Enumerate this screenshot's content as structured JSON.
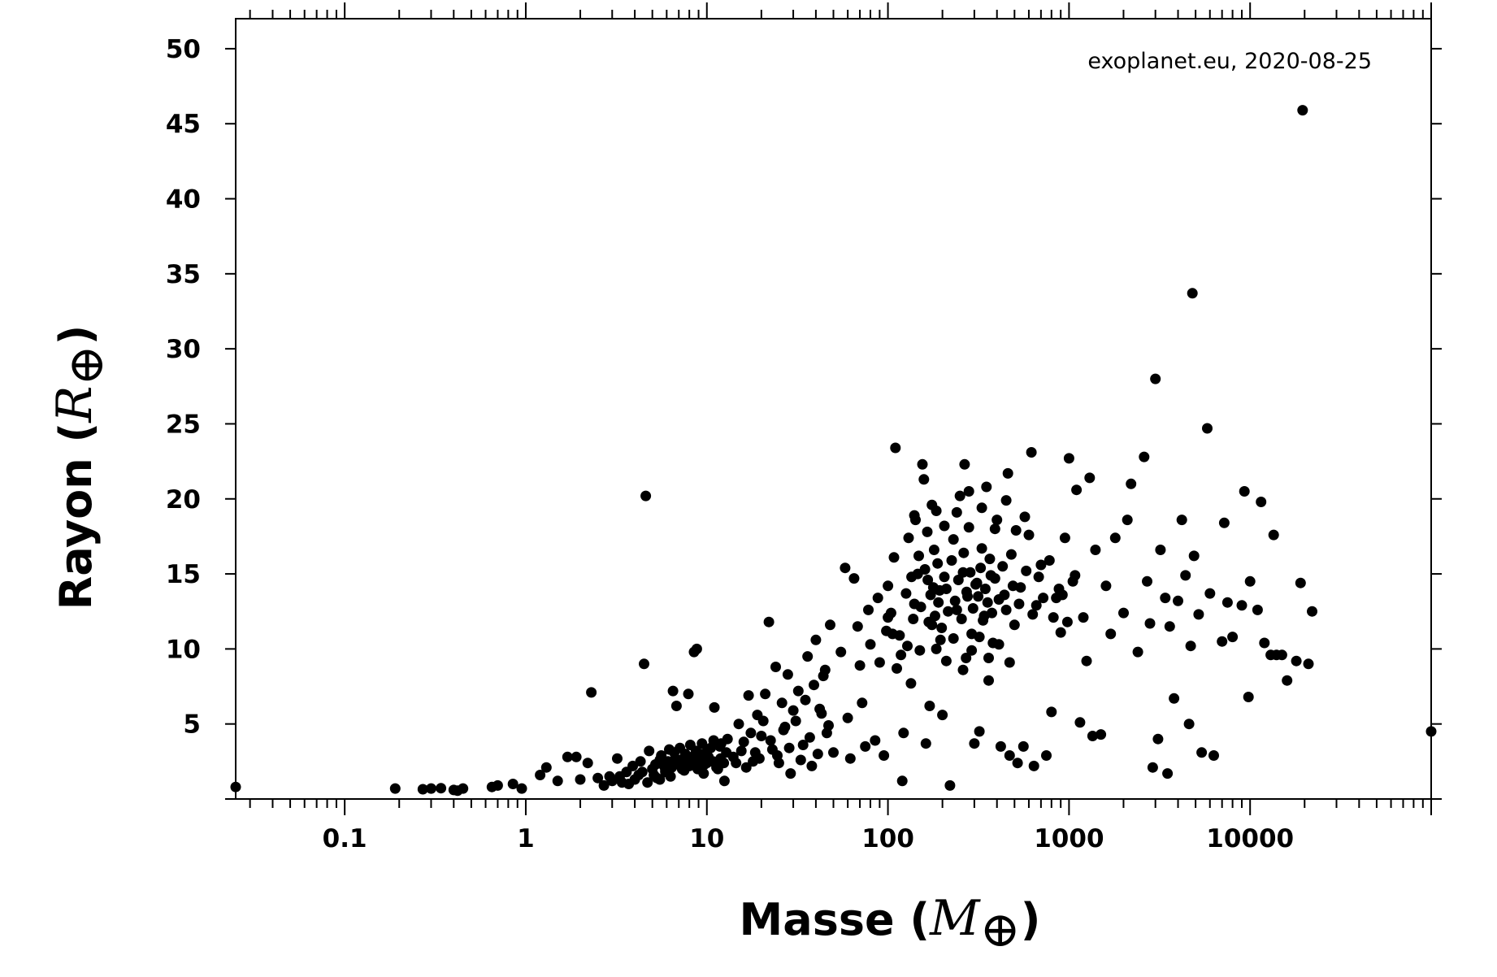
{
  "chart_data": {
    "type": "scatter",
    "annotation": "exoplanet.eu, 2020-08-25",
    "xlabel": {
      "text": "Masse (",
      "symbol": "M",
      "subscript": "⊕",
      "close": ")"
    },
    "ylabel": {
      "text": "Rayon (",
      "symbol": "R",
      "subscript": "⊕",
      "close": ")"
    },
    "x_scale": "log",
    "xlim": [
      0.025,
      100000
    ],
    "ylim": [
      0,
      52
    ],
    "x_ticks": [
      0.1,
      1,
      10,
      100,
      1000,
      10000
    ],
    "x_tick_labels": [
      "0.1",
      "1",
      "10",
      "100",
      "1000",
      "10000"
    ],
    "y_ticks": [
      5,
      10,
      15,
      20,
      25,
      30,
      35,
      40,
      45,
      50
    ],
    "y_tick_labels": [
      "5",
      "10",
      "15",
      "20",
      "25",
      "30",
      "35",
      "40",
      "45",
      "50"
    ],
    "grid": false,
    "marker_color": "#000000",
    "points": [
      [
        0.025,
        0.8
      ],
      [
        0.19,
        0.7
      ],
      [
        0.27,
        0.65
      ],
      [
        0.3,
        0.7
      ],
      [
        0.34,
        0.72
      ],
      [
        0.4,
        0.6
      ],
      [
        0.42,
        0.55
      ],
      [
        0.45,
        0.7
      ],
      [
        0.65,
        0.8
      ],
      [
        0.7,
        0.9
      ],
      [
        0.85,
        1.0
      ],
      [
        0.95,
        0.7
      ],
      [
        1.2,
        1.6
      ],
      [
        1.3,
        2.1
      ],
      [
        1.5,
        1.2
      ],
      [
        1.7,
        2.8
      ],
      [
        1.9,
        2.8
      ],
      [
        2.0,
        1.3
      ],
      [
        2.2,
        2.4
      ],
      [
        2.3,
        7.1
      ],
      [
        2.5,
        1.4
      ],
      [
        2.7,
        0.9
      ],
      [
        2.9,
        1.5
      ],
      [
        3.2,
        2.7
      ],
      [
        3.4,
        1.1
      ],
      [
        3.6,
        1.8
      ],
      [
        3.9,
        2.2
      ],
      [
        4.2,
        1.6
      ],
      [
        4.3,
        2.5
      ],
      [
        4.5,
        9.0
      ],
      [
        4.6,
        20.2
      ],
      [
        4.8,
        3.2
      ],
      [
        5.0,
        2.0
      ],
      [
        5.3,
        1.4
      ],
      [
        5.6,
        2.9
      ],
      [
        5.9,
        1.8
      ],
      [
        6.2,
        3.3
      ],
      [
        6.5,
        7.2
      ],
      [
        6.8,
        6.2
      ],
      [
        7.2,
        2.6
      ],
      [
        7.5,
        1.9
      ],
      [
        7.9,
        7.0
      ],
      [
        8.2,
        2.3
      ],
      [
        8.5,
        9.8
      ],
      [
        8.8,
        10.0
      ],
      [
        9.2,
        3.0
      ],
      [
        9.6,
        1.7
      ],
      [
        10.0,
        2.4
      ],
      [
        10.5,
        3.4
      ],
      [
        11.0,
        6.1
      ],
      [
        11.5,
        2.0
      ],
      [
        12.0,
        3.7
      ],
      [
        12.5,
        1.2
      ],
      [
        13.0,
        4.0
      ],
      [
        14.0,
        2.8
      ],
      [
        15.0,
        5.0
      ],
      [
        16.0,
        3.8
      ],
      [
        17.0,
        6.9
      ],
      [
        18.0,
        2.5
      ],
      [
        19.0,
        5.6
      ],
      [
        20.0,
        4.2
      ],
      [
        21.0,
        7.0
      ],
      [
        22.0,
        11.8
      ],
      [
        23.0,
        3.3
      ],
      [
        24.0,
        8.8
      ],
      [
        25.0,
        2.4
      ],
      [
        26.0,
        6.4
      ],
      [
        27.0,
        4.8
      ],
      [
        28.0,
        8.3
      ],
      [
        29.0,
        1.7
      ],
      [
        30.0,
        5.9
      ],
      [
        32.0,
        7.2
      ],
      [
        34.0,
        3.6
      ],
      [
        36.0,
        9.5
      ],
      [
        38.0,
        2.2
      ],
      [
        40.0,
        10.6
      ],
      [
        42.0,
        6.0
      ],
      [
        44.0,
        8.2
      ],
      [
        46.0,
        4.4
      ],
      [
        48.0,
        11.6
      ],
      [
        50.0,
        3.1
      ],
      [
        55.0,
        9.8
      ],
      [
        58.0,
        15.4
      ],
      [
        60.0,
        5.4
      ],
      [
        62.0,
        2.7
      ],
      [
        65.0,
        14.7
      ],
      [
        68.0,
        11.5
      ],
      [
        70.0,
        8.9
      ],
      [
        72.0,
        6.4
      ],
      [
        75.0,
        3.5
      ],
      [
        78.0,
        12.6
      ],
      [
        80.0,
        10.3
      ],
      [
        85.0,
        3.9
      ],
      [
        88.0,
        13.4
      ],
      [
        90.0,
        9.1
      ],
      [
        95.0,
        2.9
      ],
      [
        98.0,
        11.2
      ],
      [
        100.0,
        14.2
      ],
      [
        104.0,
        12.4
      ],
      [
        108.0,
        16.1
      ],
      [
        110.0,
        23.4
      ],
      [
        112.0,
        8.7
      ],
      [
        116.0,
        10.9
      ],
      [
        120.0,
        1.2
      ],
      [
        122.0,
        4.4
      ],
      [
        126.0,
        13.7
      ],
      [
        130.0,
        17.4
      ],
      [
        134.0,
        7.7
      ],
      [
        138.0,
        12.0
      ],
      [
        142.0,
        18.6
      ],
      [
        146.0,
        15.0
      ],
      [
        150.0,
        9.9
      ],
      [
        155.0,
        22.3
      ],
      [
        158.0,
        21.3
      ],
      [
        162.0,
        3.7
      ],
      [
        166.0,
        14.6
      ],
      [
        170.0,
        6.2
      ],
      [
        175.0,
        11.6
      ],
      [
        180.0,
        16.6
      ],
      [
        185.0,
        19.2
      ],
      [
        190.0,
        13.1
      ],
      [
        195.0,
        10.6
      ],
      [
        200.0,
        5.6
      ],
      [
        210.0,
        14.0
      ],
      [
        220.0,
        0.9
      ],
      [
        230.0,
        17.3
      ],
      [
        240.0,
        12.6
      ],
      [
        250.0,
        20.2
      ],
      [
        260.0,
        15.1
      ],
      [
        265.0,
        22.3
      ],
      [
        270.0,
        9.4
      ],
      [
        275.0,
        13.5
      ],
      [
        280.0,
        18.1
      ],
      [
        290.0,
        11.0
      ],
      [
        300.0,
        3.7
      ],
      [
        310.0,
        14.4
      ],
      [
        320.0,
        4.5
      ],
      [
        330.0,
        16.7
      ],
      [
        340.0,
        12.2
      ],
      [
        350.0,
        20.8
      ],
      [
        360.0,
        7.9
      ],
      [
        370.0,
        14.9
      ],
      [
        380.0,
        10.4
      ],
      [
        400.0,
        18.6
      ],
      [
        420.0,
        3.5
      ],
      [
        440.0,
        13.6
      ],
      [
        460.0,
        21.7
      ],
      [
        470.0,
        2.9
      ],
      [
        480.0,
        16.3
      ],
      [
        500.0,
        11.6
      ],
      [
        520.0,
        2.4
      ],
      [
        540.0,
        14.1
      ],
      [
        560.0,
        3.5
      ],
      [
        600.0,
        17.6
      ],
      [
        620.0,
        23.1
      ],
      [
        640.0,
        2.2
      ],
      [
        660.0,
        12.9
      ],
      [
        700.0,
        15.6
      ],
      [
        750.0,
        2.9
      ],
      [
        800.0,
        5.8
      ],
      [
        850.0,
        13.4
      ],
      [
        900.0,
        11.1
      ],
      [
        950.0,
        17.4
      ],
      [
        1000.0,
        22.7
      ],
      [
        1050.0,
        14.5
      ],
      [
        1100.0,
        20.6
      ],
      [
        1150.0,
        5.1
      ],
      [
        1200.0,
        12.1
      ],
      [
        1250.0,
        9.2
      ],
      [
        1300.0,
        21.4
      ],
      [
        1350.0,
        4.2
      ],
      [
        1400.0,
        16.6
      ],
      [
        1500.0,
        4.3
      ],
      [
        1600.0,
        14.2
      ],
      [
        1700.0,
        11.0
      ],
      [
        1800.0,
        17.4
      ],
      [
        2000.0,
        12.4
      ],
      [
        2100.0,
        18.6
      ],
      [
        2200.0,
        21.0
      ],
      [
        2400.0,
        9.8
      ],
      [
        2600.0,
        22.8
      ],
      [
        2700.0,
        14.5
      ],
      [
        2800.0,
        11.7
      ],
      [
        2900.0,
        2.1
      ],
      [
        3000.0,
        28.0
      ],
      [
        3100.0,
        4.0
      ],
      [
        3200.0,
        16.6
      ],
      [
        3400.0,
        13.4
      ],
      [
        3500.0,
        1.7
      ],
      [
        3600.0,
        11.5
      ],
      [
        3800.0,
        6.7
      ],
      [
        4000.0,
        13.2
      ],
      [
        4200.0,
        18.6
      ],
      [
        4400.0,
        14.9
      ],
      [
        4600.0,
        5.0
      ],
      [
        4700.0,
        10.2
      ],
      [
        4800.0,
        33.7
      ],
      [
        4900.0,
        16.2
      ],
      [
        5200.0,
        12.3
      ],
      [
        5400.0,
        3.1
      ],
      [
        5800.0,
        24.7
      ],
      [
        6000.0,
        13.7
      ],
      [
        6300.0,
        2.9
      ],
      [
        7000.0,
        10.5
      ],
      [
        7200.0,
        18.4
      ],
      [
        7500.0,
        13.1
      ],
      [
        8000.0,
        10.8
      ],
      [
        9000.0,
        12.9
      ],
      [
        9300.0,
        20.5
      ],
      [
        9800.0,
        6.8
      ],
      [
        10000.0,
        14.5
      ],
      [
        11000.0,
        12.6
      ],
      [
        11500.0,
        19.8
      ],
      [
        12000.0,
        10.4
      ],
      [
        13000.0,
        9.6
      ],
      [
        13500.0,
        17.6
      ],
      [
        14000.0,
        9.6
      ],
      [
        15000.0,
        9.6
      ],
      [
        16000.0,
        7.9
      ],
      [
        18000.0,
        9.2
      ],
      [
        19000.0,
        14.4
      ],
      [
        19500.0,
        45.9
      ],
      [
        21000.0,
        9.0
      ],
      [
        22000.0,
        12.5
      ],
      [
        100000.0,
        4.5
      ],
      [
        100.0,
        12.1
      ],
      [
        106.0,
        11.0
      ],
      [
        118.0,
        9.6
      ],
      [
        128.0,
        10.2
      ],
      [
        135.0,
        14.8
      ],
      [
        140.0,
        13.0
      ],
      [
        148.0,
        16.2
      ],
      [
        152.0,
        12.8
      ],
      [
        160.0,
        15.3
      ],
      [
        168.0,
        11.8
      ],
      [
        172.0,
        13.6
      ],
      [
        178.0,
        14.1
      ],
      [
        182.0,
        12.2
      ],
      [
        188.0,
        15.7
      ],
      [
        193.0,
        13.9
      ],
      [
        198.0,
        11.4
      ],
      [
        205.0,
        14.8
      ],
      [
        215.0,
        12.5
      ],
      [
        225.0,
        15.9
      ],
      [
        235.0,
        13.2
      ],
      [
        245.0,
        14.6
      ],
      [
        255.0,
        12.0
      ],
      [
        262.0,
        16.4
      ],
      [
        272.0,
        13.8
      ],
      [
        285.0,
        15.1
      ],
      [
        295.0,
        12.7
      ],
      [
        305.0,
        14.3
      ],
      [
        315.0,
        13.5
      ],
      [
        325.0,
        15.4
      ],
      [
        335.0,
        11.9
      ],
      [
        345.0,
        14.0
      ],
      [
        355.0,
        13.1
      ],
      [
        365.0,
        16.0
      ],
      [
        375.0,
        12.4
      ],
      [
        390.0,
        14.7
      ],
      [
        410.0,
        13.3
      ],
      [
        430.0,
        15.5
      ],
      [
        450.0,
        12.6
      ],
      [
        490.0,
        14.2
      ],
      [
        530.0,
        13.0
      ],
      [
        580.0,
        15.2
      ],
      [
        630.0,
        12.3
      ],
      [
        680.0,
        14.8
      ],
      [
        720.0,
        13.4
      ],
      [
        780.0,
        15.9
      ],
      [
        820.0,
        12.1
      ],
      [
        880.0,
        14.0
      ],
      [
        920.0,
        13.6
      ],
      [
        980.0,
        11.8
      ],
      [
        1080.0,
        14.9
      ],
      [
        165.0,
        17.8
      ],
      [
        185.0,
        10.0
      ],
      [
        210.0,
        9.2
      ],
      [
        230.0,
        10.7
      ],
      [
        260.0,
        8.6
      ],
      [
        290.0,
        9.9
      ],
      [
        320.0,
        10.8
      ],
      [
        360.0,
        9.4
      ],
      [
        410.0,
        10.3
      ],
      [
        470.0,
        9.1
      ],
      [
        140.0,
        18.9
      ],
      [
        175.0,
        19.6
      ],
      [
        205.0,
        18.2
      ],
      [
        240.0,
        19.1
      ],
      [
        280.0,
        20.5
      ],
      [
        330.0,
        19.4
      ],
      [
        390.0,
        18.0
      ],
      [
        450.0,
        19.9
      ],
      [
        510.0,
        17.9
      ],
      [
        570.0,
        18.8
      ],
      [
        5.2,
        2.3
      ],
      [
        5.5,
        2.6
      ],
      [
        5.8,
        2.2
      ],
      [
        6.1,
        2.5
      ],
      [
        6.4,
        2.1
      ],
      [
        6.7,
        2.7
      ],
      [
        7.0,
        2.3
      ],
      [
        7.3,
        2.0
      ],
      [
        7.7,
        2.6
      ],
      [
        8.0,
        2.2
      ],
      [
        8.3,
        2.8
      ],
      [
        8.6,
        2.4
      ],
      [
        8.9,
        2.0
      ],
      [
        9.3,
        2.6
      ],
      [
        9.7,
        2.3
      ],
      [
        10.2,
        2.8
      ],
      [
        10.8,
        2.5
      ],
      [
        11.3,
        2.1
      ],
      [
        11.9,
        2.7
      ],
      [
        12.4,
        2.4
      ],
      [
        3.0,
        1.2
      ],
      [
        3.3,
        1.5
      ],
      [
        3.7,
        1.0
      ],
      [
        4.0,
        1.3
      ],
      [
        4.4,
        1.8
      ],
      [
        4.7,
        1.1
      ],
      [
        5.1,
        1.6
      ],
      [
        5.5,
        1.3
      ],
      [
        5.9,
        1.9
      ],
      [
        6.3,
        1.5
      ],
      [
        6.6,
        3.1
      ],
      [
        7.1,
        3.4
      ],
      [
        7.6,
        3.0
      ],
      [
        8.1,
        3.6
      ],
      [
        8.7,
        3.2
      ],
      [
        9.4,
        3.7
      ],
      [
        10.1,
        3.3
      ],
      [
        10.9,
        3.9
      ],
      [
        11.8,
        3.5
      ],
      [
        12.8,
        3.1
      ],
      [
        14.5,
        2.4
      ],
      [
        15.5,
        3.2
      ],
      [
        16.5,
        2.1
      ],
      [
        17.5,
        4.4
      ],
      [
        18.5,
        3.1
      ],
      [
        19.5,
        2.7
      ],
      [
        20.5,
        5.2
      ],
      [
        22.5,
        3.9
      ],
      [
        24.5,
        2.9
      ],
      [
        26.5,
        4.6
      ],
      [
        28.5,
        3.4
      ],
      [
        31.0,
        5.2
      ],
      [
        33.0,
        2.6
      ],
      [
        35.0,
        6.6
      ],
      [
        37.0,
        4.1
      ],
      [
        39.0,
        7.6
      ],
      [
        41.0,
        3.0
      ],
      [
        43.0,
        5.7
      ],
      [
        45.0,
        8.6
      ],
      [
        47.0,
        4.9
      ]
    ]
  }
}
